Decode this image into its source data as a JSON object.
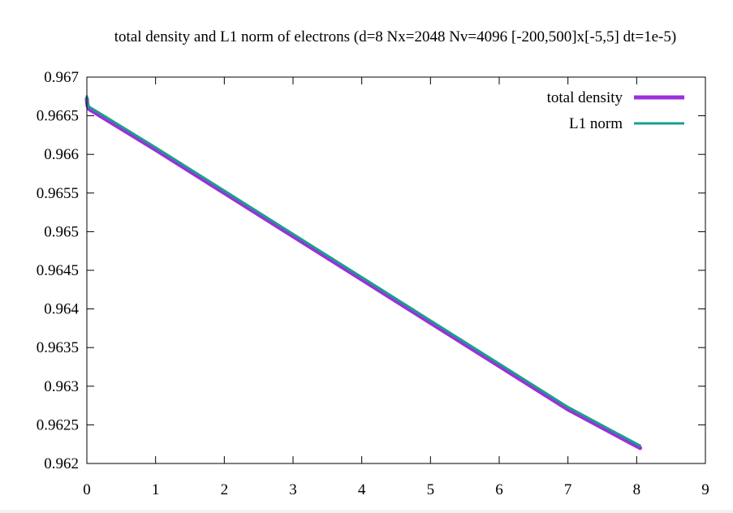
{
  "chart_data": {
    "type": "line",
    "title": "total density and L1 norm of electrons (d=8 Nx=2048 Nv=4096 [-200,500]x[-5,5] dt=1e-5)",
    "xlabel": "",
    "ylabel": "",
    "xlim": [
      0,
      9
    ],
    "ylim": [
      0.962,
      0.967
    ],
    "x_ticks": [
      "0",
      "1",
      "2",
      "3",
      "4",
      "5",
      "6",
      "7",
      "8",
      "9"
    ],
    "y_ticks": [
      "0.962",
      "0.9625",
      "0.963",
      "0.9635",
      "0.964",
      "0.9645",
      "0.965",
      "0.9655",
      "0.966",
      "0.9665",
      "0.967"
    ],
    "legend_position": "top-right",
    "grid": false,
    "series": [
      {
        "name": "total density",
        "color": "#9b30d9",
        "x": [
          0,
          0.005,
          0.015,
          0.03,
          0.06,
          0.1,
          1,
          2,
          3,
          4,
          5,
          6,
          7,
          8.05
        ],
        "y": [
          0.96672,
          0.96666,
          0.96662,
          0.96659,
          0.96657,
          0.96655,
          0.96606,
          0.9655,
          0.96494,
          0.96438,
          0.96382,
          0.96326,
          0.9627,
          0.9622
        ]
      },
      {
        "name": "L1 norm",
        "color": "#1a9e8f",
        "x": [
          0,
          0.005,
          0.015,
          0.03,
          0.06,
          0.1,
          1,
          2,
          3,
          4,
          5,
          6,
          7,
          8.05
        ],
        "y": [
          0.96675,
          0.96669,
          0.96665,
          0.96662,
          0.9666,
          0.96658,
          0.96609,
          0.96553,
          0.96497,
          0.96441,
          0.96385,
          0.96329,
          0.96273,
          0.96223
        ]
      }
    ]
  }
}
